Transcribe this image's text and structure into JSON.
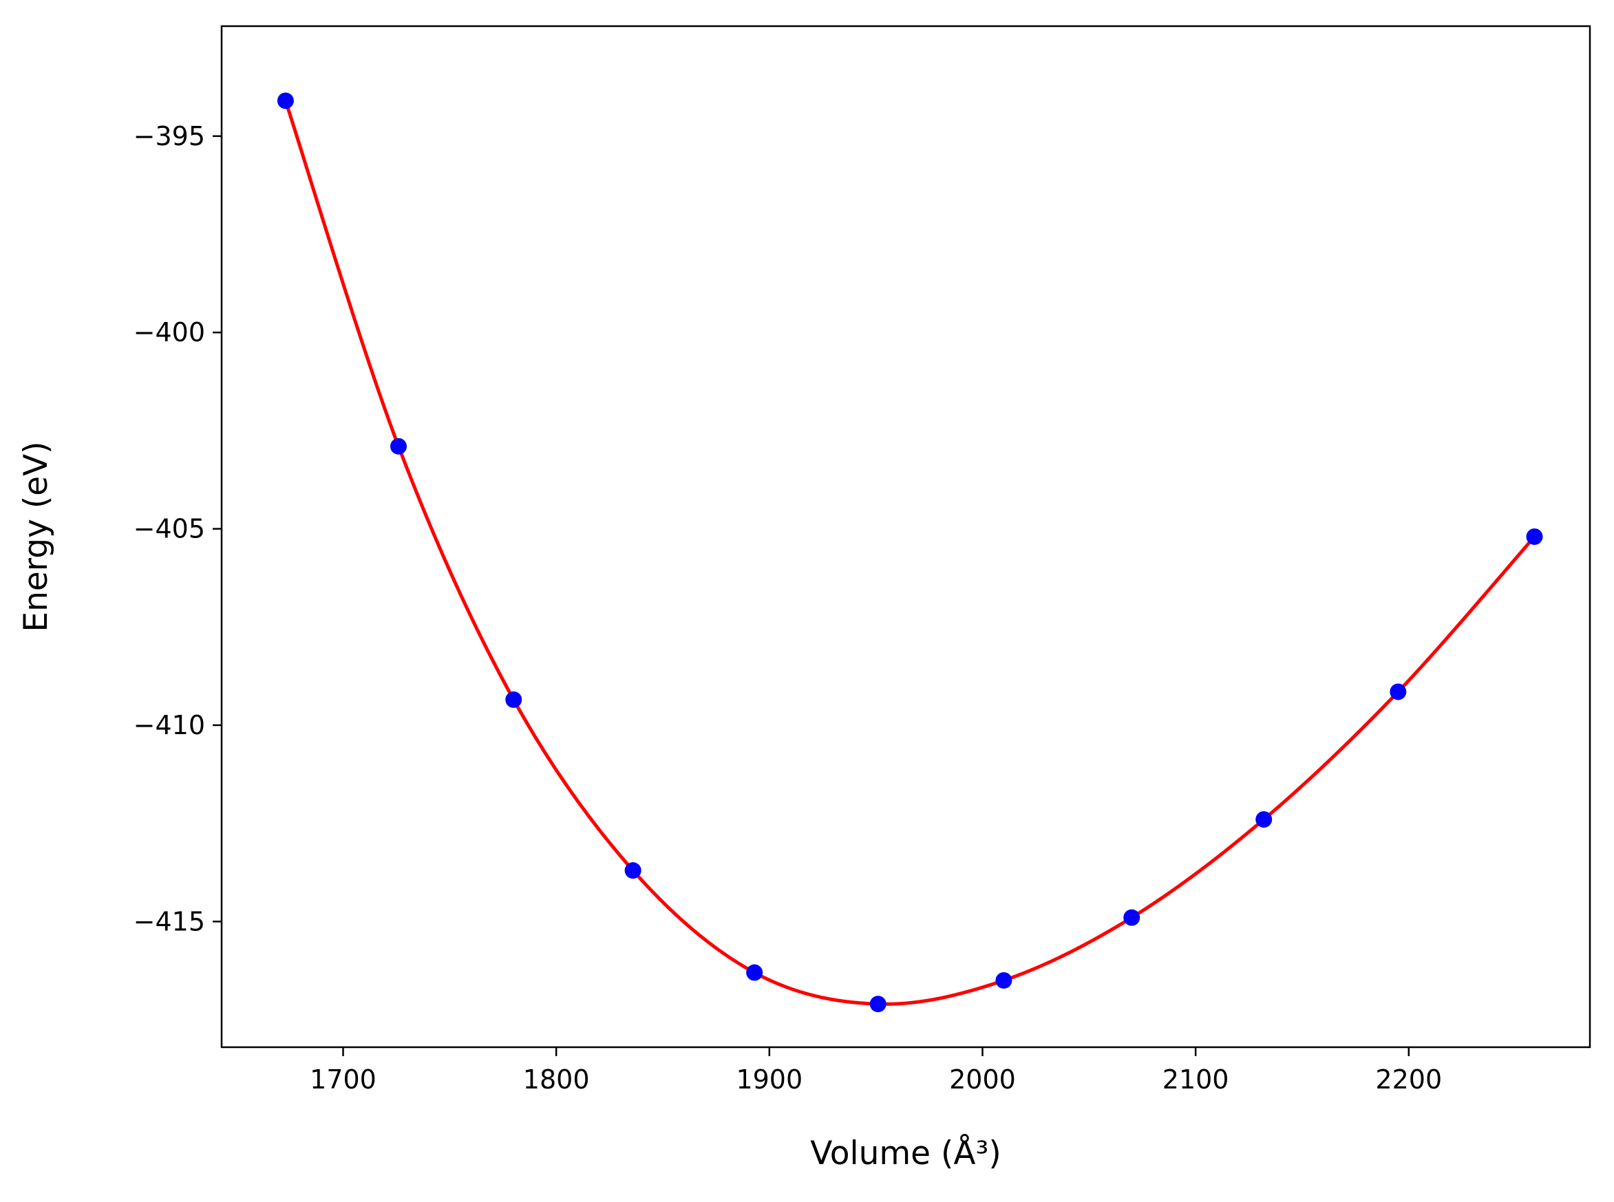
{
  "chart_data": {
    "type": "scatter",
    "title": "",
    "xlabel": "Volume (Å³)",
    "ylabel": "Energy (eV)",
    "xlim": [
      1643,
      2285
    ],
    "ylim": [
      -418.2,
      -392.2
    ],
    "xticks": [
      1700,
      1800,
      1900,
      2000,
      2100,
      2200
    ],
    "yticks": [
      -395,
      -400,
      -405,
      -410,
      -415
    ],
    "x_tick_labels": [
      "1700",
      "1800",
      "1900",
      "2000",
      "2100",
      "2200"
    ],
    "y_tick_labels": [
      "−395",
      "−400",
      "−405",
      "−410",
      "−415"
    ],
    "grid": false,
    "series": [
      {
        "name": "data",
        "style": "markers",
        "color": "#0000ff",
        "x": [
          1673,
          1726,
          1780,
          1836,
          1893,
          1951,
          2010,
          2070,
          2132,
          2195,
          2259
        ],
        "y": [
          -394.1,
          -402.9,
          -409.35,
          -413.7,
          -416.3,
          -417.1,
          -416.5,
          -414.9,
          -412.4,
          -409.15,
          -405.2
        ]
      },
      {
        "name": "fit",
        "style": "line",
        "color": "#ff0000",
        "x": [
          1673,
          1726,
          1780,
          1836,
          1893,
          1951,
          2010,
          2070,
          2132,
          2195,
          2259
        ],
        "y": [
          -394.1,
          -402.9,
          -409.35,
          -413.7,
          -416.3,
          -417.1,
          -416.5,
          -414.9,
          -412.4,
          -409.15,
          -405.2
        ]
      }
    ]
  }
}
